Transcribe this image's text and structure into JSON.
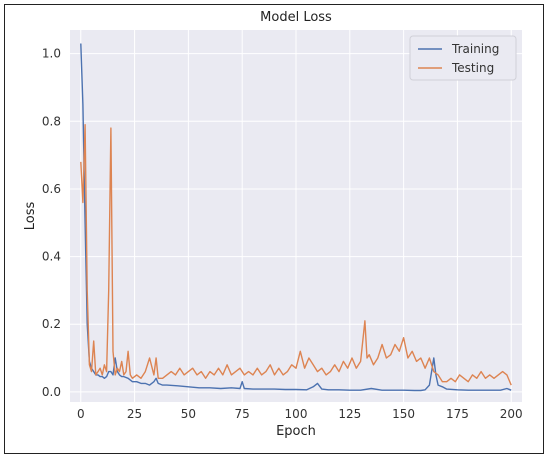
{
  "chart_data": {
    "type": "line",
    "title": "Model Loss",
    "xlabel": "Epoch",
    "ylabel": "Loss",
    "xlim": [
      -5,
      205
    ],
    "ylim": [
      -0.03,
      1.07
    ],
    "xticks": [
      0,
      25,
      50,
      75,
      100,
      125,
      150,
      175,
      200
    ],
    "yticks": [
      0.0,
      0.2,
      0.4,
      0.6,
      0.8,
      1.0
    ],
    "grid": true,
    "legend_position": "top-right",
    "series": [
      {
        "name": "Training",
        "color": "#4c72b0",
        "points": [
          [
            0,
            1.03
          ],
          [
            1,
            0.85
          ],
          [
            2,
            0.5
          ],
          [
            3,
            0.2
          ],
          [
            4,
            0.09
          ],
          [
            5,
            0.07
          ],
          [
            6,
            0.06
          ],
          [
            7,
            0.05
          ],
          [
            8,
            0.05
          ],
          [
            9,
            0.045
          ],
          [
            10,
            0.045
          ],
          [
            11,
            0.04
          ],
          [
            12,
            0.045
          ],
          [
            13,
            0.06
          ],
          [
            14,
            0.06
          ],
          [
            15,
            0.05
          ],
          [
            16,
            0.1
          ],
          [
            17,
            0.06
          ],
          [
            18,
            0.05
          ],
          [
            19,
            0.045
          ],
          [
            20,
            0.045
          ],
          [
            22,
            0.04
          ],
          [
            24,
            0.03
          ],
          [
            26,
            0.03
          ],
          [
            28,
            0.025
          ],
          [
            30,
            0.025
          ],
          [
            32,
            0.02
          ],
          [
            34,
            0.03
          ],
          [
            35,
            0.04
          ],
          [
            36,
            0.025
          ],
          [
            38,
            0.02
          ],
          [
            40,
            0.02
          ],
          [
            45,
            0.018
          ],
          [
            50,
            0.015
          ],
          [
            55,
            0.012
          ],
          [
            60,
            0.012
          ],
          [
            65,
            0.01
          ],
          [
            70,
            0.012
          ],
          [
            74,
            0.01
          ],
          [
            75,
            0.03
          ],
          [
            76,
            0.01
          ],
          [
            80,
            0.008
          ],
          [
            85,
            0.008
          ],
          [
            90,
            0.008
          ],
          [
            95,
            0.007
          ],
          [
            100,
            0.007
          ],
          [
            105,
            0.006
          ],
          [
            108,
            0.015
          ],
          [
            110,
            0.025
          ],
          [
            112,
            0.008
          ],
          [
            115,
            0.006
          ],
          [
            120,
            0.006
          ],
          [
            125,
            0.005
          ],
          [
            130,
            0.005
          ],
          [
            135,
            0.01
          ],
          [
            140,
            0.005
          ],
          [
            145,
            0.005
          ],
          [
            150,
            0.005
          ],
          [
            155,
            0.004
          ],
          [
            158,
            0.004
          ],
          [
            160,
            0.006
          ],
          [
            162,
            0.02
          ],
          [
            163,
            0.06
          ],
          [
            164,
            0.1
          ],
          [
            165,
            0.05
          ],
          [
            166,
            0.02
          ],
          [
            168,
            0.015
          ],
          [
            170,
            0.008
          ],
          [
            175,
            0.006
          ],
          [
            180,
            0.005
          ],
          [
            185,
            0.005
          ],
          [
            190,
            0.005
          ],
          [
            195,
            0.005
          ],
          [
            198,
            0.01
          ],
          [
            200,
            0.005
          ]
        ]
      },
      {
        "name": "Testing",
        "color": "#dd8452",
        "points": [
          [
            0,
            0.68
          ],
          [
            1,
            0.56
          ],
          [
            2,
            0.79
          ],
          [
            3,
            0.3
          ],
          [
            4,
            0.08
          ],
          [
            5,
            0.06
          ],
          [
            6,
            0.15
          ],
          [
            7,
            0.05
          ],
          [
            8,
            0.06
          ],
          [
            9,
            0.07
          ],
          [
            10,
            0.05
          ],
          [
            11,
            0.08
          ],
          [
            12,
            0.06
          ],
          [
            13,
            0.3
          ],
          [
            14,
            0.78
          ],
          [
            15,
            0.12
          ],
          [
            16,
            0.05
          ],
          [
            17,
            0.07
          ],
          [
            18,
            0.06
          ],
          [
            19,
            0.09
          ],
          [
            20,
            0.05
          ],
          [
            21,
            0.06
          ],
          [
            22,
            0.12
          ],
          [
            23,
            0.05
          ],
          [
            24,
            0.04
          ],
          [
            26,
            0.05
          ],
          [
            28,
            0.04
          ],
          [
            30,
            0.06
          ],
          [
            32,
            0.1
          ],
          [
            34,
            0.05
          ],
          [
            35,
            0.1
          ],
          [
            36,
            0.04
          ],
          [
            38,
            0.04
          ],
          [
            40,
            0.05
          ],
          [
            42,
            0.06
          ],
          [
            44,
            0.05
          ],
          [
            46,
            0.07
          ],
          [
            48,
            0.05
          ],
          [
            50,
            0.06
          ],
          [
            52,
            0.07
          ],
          [
            54,
            0.05
          ],
          [
            56,
            0.06
          ],
          [
            58,
            0.04
          ],
          [
            60,
            0.06
          ],
          [
            62,
            0.05
          ],
          [
            64,
            0.07
          ],
          [
            66,
            0.05
          ],
          [
            68,
            0.08
          ],
          [
            70,
            0.05
          ],
          [
            72,
            0.06
          ],
          [
            74,
            0.07
          ],
          [
            76,
            0.05
          ],
          [
            78,
            0.06
          ],
          [
            80,
            0.05
          ],
          [
            82,
            0.07
          ],
          [
            84,
            0.05
          ],
          [
            86,
            0.06
          ],
          [
            88,
            0.08
          ],
          [
            90,
            0.05
          ],
          [
            92,
            0.07
          ],
          [
            94,
            0.05
          ],
          [
            96,
            0.06
          ],
          [
            98,
            0.08
          ],
          [
            100,
            0.07
          ],
          [
            102,
            0.12
          ],
          [
            104,
            0.07
          ],
          [
            106,
            0.1
          ],
          [
            108,
            0.08
          ],
          [
            110,
            0.06
          ],
          [
            112,
            0.07
          ],
          [
            114,
            0.05
          ],
          [
            116,
            0.06
          ],
          [
            118,
            0.08
          ],
          [
            120,
            0.06
          ],
          [
            122,
            0.09
          ],
          [
            124,
            0.07
          ],
          [
            126,
            0.1
          ],
          [
            128,
            0.07
          ],
          [
            130,
            0.09
          ],
          [
            132,
            0.21
          ],
          [
            133,
            0.1
          ],
          [
            134,
            0.11
          ],
          [
            136,
            0.08
          ],
          [
            138,
            0.1
          ],
          [
            140,
            0.14
          ],
          [
            142,
            0.1
          ],
          [
            144,
            0.11
          ],
          [
            146,
            0.14
          ],
          [
            148,
            0.12
          ],
          [
            150,
            0.16
          ],
          [
            152,
            0.1
          ],
          [
            154,
            0.12
          ],
          [
            156,
            0.09
          ],
          [
            158,
            0.1
          ],
          [
            160,
            0.07
          ],
          [
            162,
            0.1
          ],
          [
            164,
            0.06
          ],
          [
            166,
            0.05
          ],
          [
            168,
            0.03
          ],
          [
            170,
            0.03
          ],
          [
            172,
            0.04
          ],
          [
            174,
            0.03
          ],
          [
            176,
            0.05
          ],
          [
            178,
            0.04
          ],
          [
            180,
            0.03
          ],
          [
            182,
            0.05
          ],
          [
            184,
            0.04
          ],
          [
            186,
            0.06
          ],
          [
            188,
            0.04
          ],
          [
            190,
            0.05
          ],
          [
            192,
            0.04
          ],
          [
            194,
            0.05
          ],
          [
            196,
            0.06
          ],
          [
            198,
            0.05
          ],
          [
            200,
            0.02
          ]
        ]
      }
    ]
  }
}
